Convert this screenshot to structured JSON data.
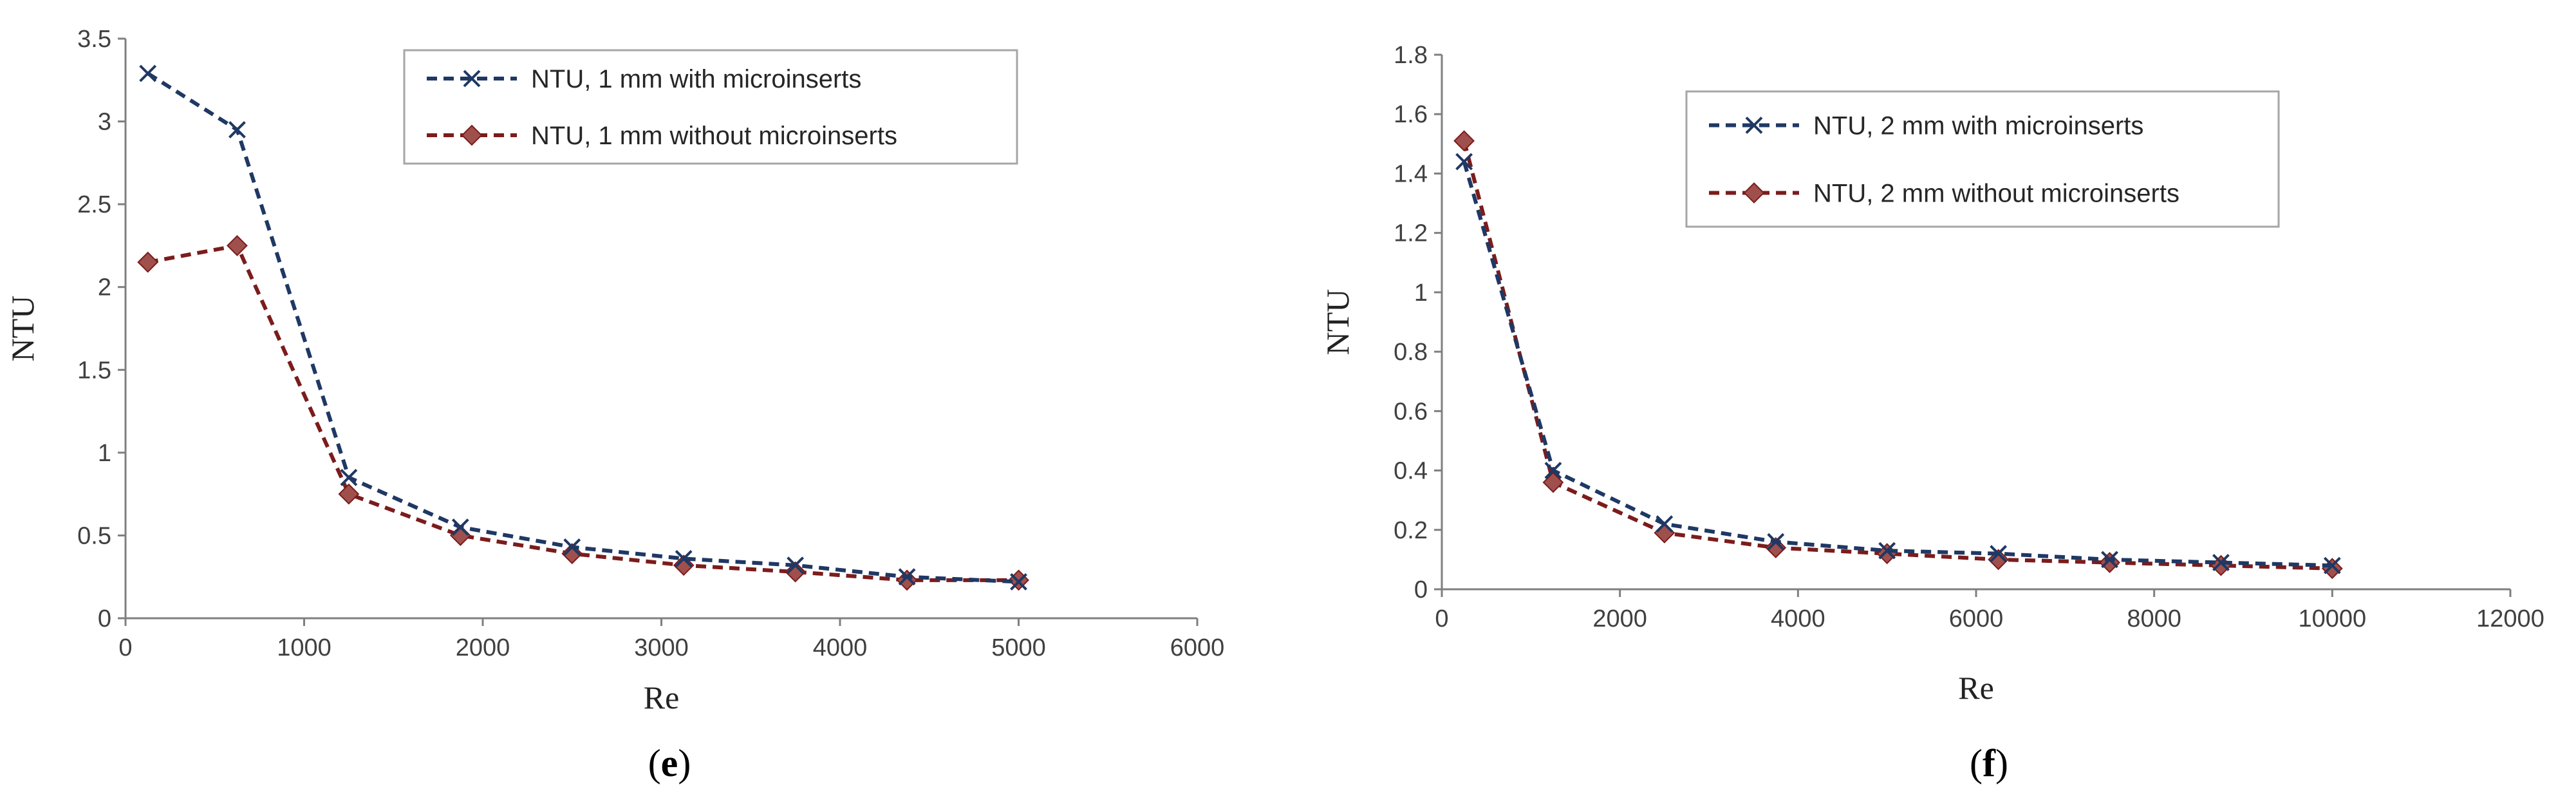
{
  "chart_data": [
    {
      "type": "line",
      "panel_label": "e",
      "xlabel": "Re",
      "ylabel": "NTU",
      "xlim": [
        0,
        6000
      ],
      "ylim": [
        0,
        3.5
      ],
      "xticks": [
        0,
        1000,
        2000,
        3000,
        4000,
        5000,
        6000
      ],
      "xtick_labels": [
        "0",
        "1000",
        "2000",
        "3000",
        "4000",
        "5000",
        "6000"
      ],
      "yticks": [
        0,
        0.5,
        1,
        1.5,
        2,
        2.5,
        3,
        3.5
      ],
      "ytick_labels": [
        "0",
        "0.5",
        "1",
        "1.5",
        "2",
        "2.5",
        "3",
        "3.5"
      ],
      "grid": false,
      "legend_position": "top-right",
      "series": [
        {
          "name": "NTU, 1 mm with microinserts",
          "color": "#1f3864",
          "marker": "x",
          "x": [
            125,
            625,
            1250,
            1875,
            2500,
            3125,
            3750,
            4375,
            5000
          ],
          "y": [
            3.29,
            2.95,
            0.85,
            0.55,
            0.43,
            0.36,
            0.32,
            0.25,
            0.22
          ]
        },
        {
          "name": "NTU, 1 mm without microinserts",
          "color": "#7b1c1c",
          "marker_color": "#a0504c",
          "marker": "diamond",
          "x": [
            125,
            625,
            1250,
            1875,
            2500,
            3125,
            3750,
            4375,
            5000
          ],
          "y": [
            2.15,
            2.25,
            0.75,
            0.5,
            0.39,
            0.32,
            0.28,
            0.23,
            0.23
          ]
        }
      ]
    },
    {
      "type": "line",
      "panel_label": "f",
      "xlabel": "Re",
      "ylabel": "NTU",
      "xlim": [
        0,
        12000
      ],
      "ylim": [
        0,
        1.8
      ],
      "xticks": [
        0,
        2000,
        4000,
        6000,
        8000,
        10000,
        12000
      ],
      "xtick_labels": [
        "0",
        "2000",
        "4000",
        "6000",
        "8000",
        "10000",
        "12000"
      ],
      "yticks": [
        0,
        0.2,
        0.4,
        0.6,
        0.8,
        1,
        1.2,
        1.4,
        1.6,
        1.8
      ],
      "ytick_labels": [
        "0",
        "0.2",
        "0.4",
        "0.6",
        "0.8",
        "1",
        "1.2",
        "1.4",
        "1.6",
        "1.8"
      ],
      "grid": false,
      "legend_position": "top-right",
      "series": [
        {
          "name": "NTU, 2 mm with microinserts",
          "color": "#1f3864",
          "marker": "x",
          "x": [
            250,
            1250,
            2500,
            3750,
            5000,
            6250,
            7500,
            8750,
            10000
          ],
          "y": [
            1.44,
            0.4,
            0.22,
            0.16,
            0.13,
            0.12,
            0.1,
            0.09,
            0.08
          ]
        },
        {
          "name": "NTU, 2 mm without microinserts",
          "color": "#7b1c1c",
          "marker_color": "#a0504c",
          "marker": "diamond",
          "x": [
            250,
            1250,
            2500,
            3750,
            5000,
            6250,
            7500,
            8750,
            10000
          ],
          "y": [
            1.51,
            0.36,
            0.19,
            0.14,
            0.12,
            0.1,
            0.09,
            0.08,
            0.07
          ]
        }
      ]
    }
  ]
}
